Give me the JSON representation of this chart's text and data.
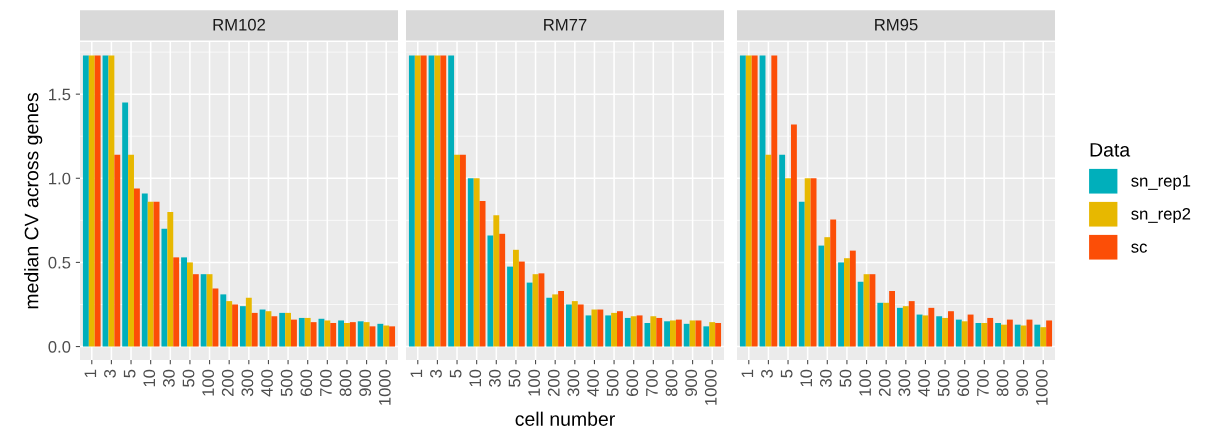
{
  "chart_data": [
    {
      "type": "bar",
      "title": "RM102",
      "ylabel": "median CV across genes",
      "categories": [
        "1",
        "3",
        "5",
        "10",
        "30",
        "50",
        "100",
        "200",
        "300",
        "400",
        "500",
        "600",
        "700",
        "800",
        "900",
        "1000"
      ],
      "ylim": [
        -0.08,
        1.81
      ],
      "yticks": [
        {
          "value": 0,
          "label": "0.0"
        },
        {
          "value": 0.5,
          "label": "0.5"
        },
        {
          "value": 1,
          "label": "1.0"
        },
        {
          "value": 1.5,
          "label": "1.5"
        }
      ],
      "grid": true,
      "series": [
        {
          "color": "#00afbb",
          "values": [
            1.73,
            1.73,
            1.45,
            0.91,
            0.7,
            0.53,
            0.43,
            0.31,
            0.24,
            0.22,
            0.2,
            0.17,
            0.165,
            0.155,
            0.15,
            0.135
          ]
        },
        {
          "color": "#e7b800",
          "values": [
            1.73,
            1.73,
            1.14,
            0.86,
            0.8,
            0.5,
            0.43,
            0.27,
            0.29,
            0.21,
            0.2,
            0.17,
            0.155,
            0.14,
            0.145,
            0.125
          ]
        },
        {
          "color": "#fc4e07",
          "values": [
            1.73,
            1.14,
            0.94,
            0.86,
            0.53,
            0.43,
            0.345,
            0.25,
            0.2,
            0.18,
            0.16,
            0.145,
            0.14,
            0.145,
            0.12,
            0.12
          ]
        }
      ]
    },
    {
      "type": "bar",
      "title": "RM77",
      "xlabel": "cell number",
      "categories": [
        "1",
        "3",
        "5",
        "10",
        "30",
        "50",
        "100",
        "200",
        "300",
        "400",
        "500",
        "600",
        "700",
        "800",
        "900",
        "1000"
      ],
      "ylim": [
        -0.08,
        1.81
      ],
      "yticks": [
        {
          "value": 0,
          "label": null
        },
        {
          "value": 0.5,
          "label": null
        },
        {
          "value": 1,
          "label": null
        },
        {
          "value": 1.5,
          "label": null
        }
      ],
      "tick_labels": "x",
      "grid": true,
      "series": [
        {
          "color": "#00afbb",
          "values": [
            1.73,
            1.73,
            1.73,
            1.0,
            0.66,
            0.475,
            0.38,
            0.29,
            0.25,
            0.185,
            0.185,
            0.17,
            0.14,
            0.15,
            0.135,
            0.12
          ]
        },
        {
          "color": "#e7b800",
          "values": [
            1.73,
            1.73,
            1.14,
            1.0,
            0.78,
            0.575,
            0.43,
            0.31,
            0.27,
            0.22,
            0.2,
            0.18,
            0.18,
            0.155,
            0.155,
            0.145
          ]
        },
        {
          "color": "#fc4e07",
          "values": [
            1.73,
            1.73,
            1.14,
            0.865,
            0.67,
            0.505,
            0.435,
            0.33,
            0.25,
            0.22,
            0.21,
            0.185,
            0.17,
            0.16,
            0.155,
            0.14
          ]
        }
      ]
    },
    {
      "type": "bar",
      "title": "RM95",
      "categories": [
        "1",
        "3",
        "5",
        "10",
        "30",
        "50",
        "100",
        "200",
        "300",
        "400",
        "500",
        "600",
        "700",
        "800",
        "900",
        "1000"
      ],
      "ylim": [
        -0.08,
        1.81
      ],
      "yticks": [
        {
          "value": 0,
          "label": null
        },
        {
          "value": 0.5,
          "label": null
        },
        {
          "value": 1,
          "label": null
        },
        {
          "value": 1.5,
          "label": null
        }
      ],
      "tick_labels": "x",
      "grid": true,
      "legend": "right",
      "legend_title": "Data",
      "series": [
        {
          "name": "sn_rep1",
          "color": "#00afbb",
          "values": [
            1.73,
            1.73,
            1.14,
            0.86,
            0.6,
            0.5,
            0.385,
            0.26,
            0.23,
            0.19,
            0.18,
            0.16,
            0.14,
            0.14,
            0.13,
            0.13
          ]
        },
        {
          "name": "sn_rep2",
          "color": "#e7b800",
          "values": [
            1.73,
            1.14,
            1.0,
            1.0,
            0.65,
            0.525,
            0.43,
            0.26,
            0.24,
            0.185,
            0.17,
            0.15,
            0.14,
            0.13,
            0.125,
            0.115
          ]
        },
        {
          "name": "sc",
          "color": "#fc4e07",
          "values": [
            1.73,
            1.73,
            1.32,
            1.0,
            0.755,
            0.57,
            0.43,
            0.33,
            0.27,
            0.23,
            0.21,
            0.19,
            0.17,
            0.16,
            0.16,
            0.155
          ]
        }
      ]
    }
  ]
}
